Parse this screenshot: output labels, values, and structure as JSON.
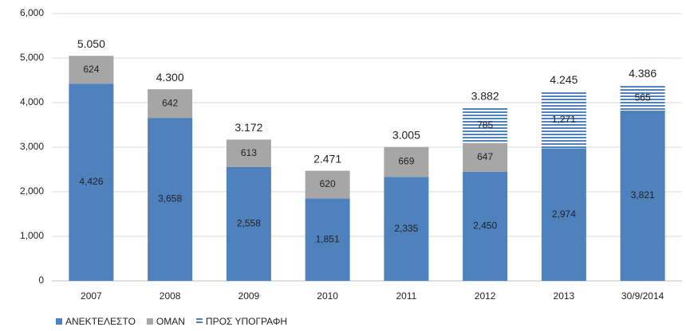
{
  "chart_data": {
    "type": "bar",
    "stacked": true,
    "categories": [
      "2007",
      "2008",
      "2009",
      "2010",
      "2011",
      "2012",
      "2013",
      "30/9/2014"
    ],
    "series": [
      {
        "name": "ΑΝΕΚΤΕΛΕΣΤΟ",
        "color": "#4f81bd",
        "pattern": "solid",
        "values": [
          4426,
          3658,
          2558,
          1851,
          2335,
          2450,
          2974,
          3821
        ],
        "value_labels": [
          "4,426",
          "3,658",
          "2,558",
          "1,851",
          "2,335",
          "2,450",
          "2,974",
          "3,821"
        ]
      },
      {
        "name": "ΟΜΑΝ",
        "color": "#a6a6a6",
        "pattern": "solid",
        "values": [
          624,
          642,
          613,
          620,
          669,
          647,
          null,
          null
        ],
        "value_labels": [
          "624",
          "642",
          "613",
          "620",
          "669",
          "647",
          null,
          null
        ]
      },
      {
        "name": "ΠΡΟΣ ΥΠΟΓΡΑΦΗ",
        "color": "#4f81bd",
        "pattern": "horizontal-stripes",
        "values": [
          null,
          null,
          null,
          null,
          null,
          785,
          1271,
          565
        ],
        "value_labels": [
          null,
          null,
          null,
          null,
          null,
          "785",
          "1,271",
          "565"
        ]
      }
    ],
    "totals": {
      "values": [
        5050,
        4300,
        3172,
        2471,
        3005,
        3882,
        4245,
        4386
      ],
      "value_labels": [
        "5.050",
        "4.300",
        "3.172",
        "2.471",
        "3.005",
        "3.882",
        "4.245",
        "4.386"
      ]
    },
    "ylim": [
      0,
      6000
    ],
    "yticks": [
      0,
      {
        "value": 1000,
        "label": "1,000"
      },
      {
        "value": 2000,
        "label": "2,000"
      },
      {
        "value": 3000,
        "label": "3,000"
      },
      {
        "value": 4000,
        "label": "4,000"
      },
      {
        "value": 5000,
        "label": "5,000"
      },
      {
        "value": 6000,
        "label": "6,000"
      }
    ],
    "grid": true,
    "legend": "bottom-left"
  }
}
